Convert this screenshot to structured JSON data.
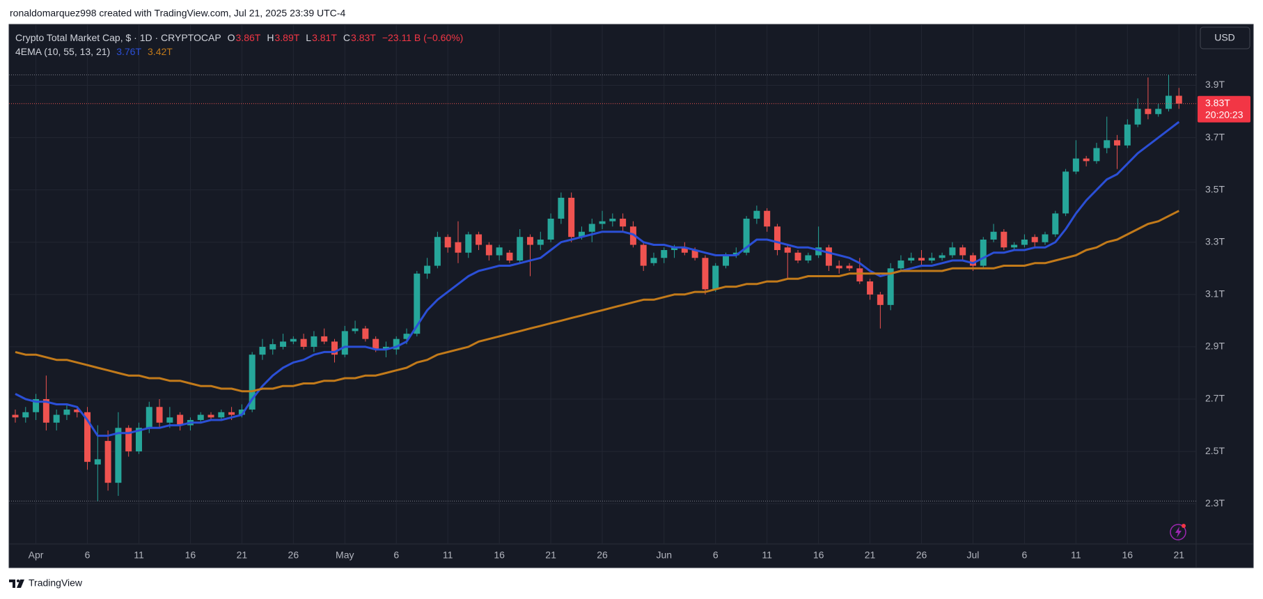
{
  "chart_data": {
    "type": "candlestick",
    "credit": "ronaldomarquez998 created with TradingView.com, Jul 21, 2025 23:39 UTC-4",
    "title": "Crypto Total Market Cap, $ · 1D · CRYPTOCAP",
    "legend": [
      {
        "key": "O",
        "value": "3.86T"
      },
      {
        "key": "H",
        "value": "3.89T"
      },
      {
        "key": "L",
        "value": "3.81T"
      },
      {
        "key": "C",
        "value": "3.83T"
      }
    ],
    "change": "−23.11 B (−0.60%)",
    "currency": "USD",
    "price_label": "3.83T",
    "countdown": "20:20:23",
    "brand": "TradingView",
    "up_color": "#26a69a",
    "down_color": "#ef5350",
    "grid": true,
    "ylim": [
      2.146,
      4.133
    ],
    "yticks": [
      {
        "value": 2.3,
        "label": "2.3T"
      },
      {
        "value": 2.5,
        "label": "2.5T"
      },
      {
        "value": 2.7,
        "label": "2.7T"
      },
      {
        "value": 2.9,
        "label": "2.9T"
      },
      {
        "value": 3.1,
        "label": "3.1T"
      },
      {
        "value": 3.3,
        "label": "3.3T"
      },
      {
        "value": 3.5,
        "label": "3.5T"
      },
      {
        "value": 3.7,
        "label": "3.7T"
      },
      {
        "value": 3.9,
        "label": "3.9T"
      }
    ],
    "categories": [
      null,
      null,
      "Apr",
      null,
      null,
      null,
      null,
      "6",
      null,
      null,
      null,
      null,
      "11",
      null,
      null,
      null,
      null,
      "16",
      null,
      null,
      null,
      null,
      "21",
      null,
      null,
      null,
      null,
      "26",
      null,
      null,
      null,
      null,
      "May",
      null,
      null,
      null,
      null,
      "6",
      null,
      null,
      null,
      null,
      "11",
      null,
      null,
      null,
      null,
      "16",
      null,
      null,
      null,
      null,
      "21",
      null,
      null,
      null,
      null,
      "26",
      null,
      null,
      null,
      null,
      null,
      "Jun",
      null,
      null,
      null,
      null,
      "6",
      null,
      null,
      null,
      null,
      "11",
      null,
      null,
      null,
      null,
      "16",
      null,
      null,
      null,
      null,
      "21",
      null,
      null,
      null,
      null,
      "26",
      null,
      null,
      null,
      null,
      "Jul",
      null,
      null,
      null,
      null,
      "6",
      null,
      null,
      null,
      null,
      "11",
      null,
      null,
      null,
      null,
      "16",
      null,
      null,
      null,
      null,
      "21"
    ],
    "open": [
      2.64,
      2.63,
      2.65,
      2.7,
      2.61,
      2.64,
      2.66,
      2.65,
      2.45,
      2.54,
      2.38,
      2.59,
      2.5,
      2.59,
      2.67,
      2.61,
      2.64,
      2.6,
      2.62,
      2.64,
      2.63,
      2.65,
      2.64,
      2.66,
      2.87,
      2.89,
      2.9,
      2.92,
      2.93,
      2.9,
      2.94,
      2.92,
      2.87,
      2.96,
      2.97,
      2.93,
      2.89,
      2.89,
      2.93,
      2.95,
      3.18,
      3.21,
      3.32,
      3.3,
      3.26,
      3.33,
      3.29,
      3.25,
      3.26,
      3.23,
      3.32,
      3.29,
      3.31,
      3.39,
      3.47,
      3.32,
      3.34,
      3.37,
      3.38,
      3.39,
      3.36,
      3.29,
      3.22,
      3.24,
      3.27,
      3.28,
      3.27,
      3.24,
      3.12,
      3.21,
      3.25,
      3.26,
      3.39,
      3.42,
      3.36,
      3.28,
      3.26,
      3.23,
      3.25,
      3.28,
      3.21,
      3.21,
      3.2,
      3.15,
      3.1,
      3.06,
      3.2,
      3.23,
      3.24,
      3.23,
      3.24,
      3.25,
      3.28,
      3.25,
      3.21,
      3.31,
      3.34,
      3.28,
      3.29,
      3.32,
      3.3,
      3.33,
      3.41,
      3.57,
      3.62,
      3.61,
      3.66,
      3.69,
      3.67,
      3.75,
      3.81,
      3.79,
      3.81,
      3.86
    ],
    "high": [
      2.66,
      2.67,
      2.72,
      2.79,
      2.66,
      2.68,
      2.67,
      2.67,
      2.6,
      2.58,
      2.65,
      2.6,
      2.61,
      2.69,
      2.7,
      2.67,
      2.65,
      2.63,
      2.65,
      2.65,
      2.66,
      2.67,
      2.68,
      2.88,
      2.93,
      2.93,
      2.95,
      2.94,
      2.95,
      2.96,
      2.97,
      2.93,
      2.98,
      3.0,
      2.98,
      2.94,
      2.92,
      2.94,
      2.97,
      3.19,
      3.24,
      3.34,
      3.33,
      3.38,
      3.34,
      3.34,
      3.3,
      3.29,
      3.27,
      3.35,
      3.33,
      3.34,
      3.41,
      3.49,
      3.49,
      3.36,
      3.39,
      3.42,
      3.41,
      3.41,
      3.38,
      3.3,
      3.26,
      3.28,
      3.29,
      3.3,
      3.28,
      3.25,
      3.22,
      3.26,
      3.28,
      3.4,
      3.44,
      3.43,
      3.37,
      3.29,
      3.27,
      3.26,
      3.36,
      3.29,
      3.23,
      3.22,
      3.24,
      3.16,
      3.11,
      3.22,
      3.25,
      3.26,
      3.27,
      3.26,
      3.26,
      3.3,
      3.29,
      3.26,
      3.32,
      3.37,
      3.35,
      3.3,
      3.33,
      3.33,
      3.34,
      3.42,
      3.58,
      3.69,
      3.63,
      3.68,
      3.78,
      3.71,
      3.77,
      3.85,
      3.93,
      3.83,
      3.94,
      3.89
    ],
    "low": [
      2.61,
      2.61,
      2.62,
      2.58,
      2.58,
      2.62,
      2.63,
      2.43,
      2.31,
      2.35,
      2.33,
      2.48,
      2.49,
      2.57,
      2.59,
      2.59,
      2.58,
      2.58,
      2.61,
      2.62,
      2.62,
      2.62,
      2.63,
      2.65,
      2.85,
      2.87,
      2.89,
      2.91,
      2.89,
      2.88,
      2.91,
      2.84,
      2.86,
      2.95,
      2.92,
      2.88,
      2.86,
      2.87,
      2.91,
      2.94,
      3.16,
      3.2,
      3.26,
      3.22,
      3.24,
      3.27,
      3.23,
      3.23,
      3.22,
      3.22,
      3.17,
      3.27,
      3.3,
      3.37,
      3.3,
      3.31,
      3.3,
      3.35,
      3.36,
      3.34,
      3.28,
      3.19,
      3.21,
      3.22,
      3.24,
      3.25,
      3.23,
      3.1,
      3.11,
      3.2,
      3.24,
      3.25,
      3.37,
      3.34,
      3.25,
      3.16,
      3.22,
      3.22,
      3.24,
      3.19,
      3.18,
      3.19,
      3.14,
      3.08,
      2.97,
      3.04,
      3.19,
      3.22,
      3.21,
      3.22,
      3.23,
      3.24,
      3.23,
      3.19,
      3.2,
      3.3,
      3.27,
      3.27,
      3.28,
      3.28,
      3.29,
      3.32,
      3.4,
      3.56,
      3.59,
      3.6,
      3.64,
      3.58,
      3.66,
      3.74,
      3.77,
      3.78,
      3.8,
      3.81
    ],
    "close": [
      2.63,
      2.65,
      2.7,
      2.61,
      2.64,
      2.66,
      2.65,
      2.46,
      2.47,
      2.38,
      2.59,
      2.5,
      2.59,
      2.67,
      2.61,
      2.63,
      2.6,
      2.62,
      2.64,
      2.63,
      2.65,
      2.64,
      2.66,
      2.87,
      2.9,
      2.91,
      2.92,
      2.93,
      2.9,
      2.94,
      2.92,
      2.87,
      2.96,
      2.97,
      2.93,
      2.89,
      2.9,
      2.93,
      2.95,
      3.18,
      3.21,
      3.32,
      3.28,
      3.26,
      3.33,
      3.29,
      3.25,
      3.28,
      3.23,
      3.32,
      3.29,
      3.31,
      3.39,
      3.47,
      3.32,
      3.34,
      3.37,
      3.38,
      3.39,
      3.36,
      3.29,
      3.21,
      3.24,
      3.27,
      3.28,
      3.26,
      3.24,
      3.12,
      3.21,
      3.25,
      3.26,
      3.39,
      3.42,
      3.36,
      3.27,
      3.26,
      3.23,
      3.25,
      3.28,
      3.21,
      3.2,
      3.2,
      3.15,
      3.1,
      3.06,
      3.2,
      3.23,
      3.24,
      3.23,
      3.24,
      3.25,
      3.28,
      3.25,
      3.21,
      3.31,
      3.34,
      3.28,
      3.29,
      3.31,
      3.3,
      3.33,
      3.41,
      3.57,
      3.62,
      3.61,
      3.66,
      3.69,
      3.67,
      3.75,
      3.81,
      3.79,
      3.81,
      3.86,
      3.83
    ],
    "indicator": {
      "label": "4EMA (10, 55, 13, 21)",
      "lines": [
        {
          "color": "#2b4fd6",
          "value_label": "3.76T",
          "values": [
            2.72,
            2.7,
            2.69,
            2.69,
            2.68,
            2.68,
            2.67,
            2.62,
            2.56,
            2.56,
            2.57,
            2.57,
            2.58,
            2.59,
            2.59,
            2.6,
            2.6,
            2.61,
            2.61,
            2.62,
            2.62,
            2.63,
            2.64,
            2.7,
            2.75,
            2.79,
            2.82,
            2.84,
            2.85,
            2.87,
            2.88,
            2.88,
            2.9,
            2.9,
            2.9,
            2.89,
            2.89,
            2.9,
            2.92,
            2.98,
            3.04,
            3.08,
            3.11,
            3.14,
            3.17,
            3.19,
            3.2,
            3.21,
            3.21,
            3.22,
            3.23,
            3.24,
            3.27,
            3.3,
            3.31,
            3.32,
            3.33,
            3.34,
            3.34,
            3.34,
            3.33,
            3.3,
            3.29,
            3.29,
            3.28,
            3.28,
            3.27,
            3.26,
            3.25,
            3.25,
            3.25,
            3.28,
            3.31,
            3.31,
            3.3,
            3.29,
            3.28,
            3.28,
            3.27,
            3.26,
            3.25,
            3.24,
            3.22,
            3.19,
            3.17,
            3.18,
            3.19,
            3.2,
            3.21,
            3.21,
            3.22,
            3.23,
            3.23,
            3.22,
            3.24,
            3.26,
            3.26,
            3.27,
            3.27,
            3.28,
            3.28,
            3.3,
            3.35,
            3.41,
            3.46,
            3.5,
            3.54,
            3.56,
            3.6,
            3.64,
            3.67,
            3.7,
            3.73,
            3.76
          ]
        },
        {
          "color": "#c27a1a",
          "value_label": "3.42T",
          "values": [
            2.88,
            2.87,
            2.87,
            2.86,
            2.85,
            2.85,
            2.84,
            2.83,
            2.82,
            2.81,
            2.8,
            2.79,
            2.79,
            2.78,
            2.78,
            2.77,
            2.77,
            2.76,
            2.75,
            2.75,
            2.74,
            2.74,
            2.73,
            2.73,
            2.74,
            2.74,
            2.75,
            2.75,
            2.76,
            2.76,
            2.77,
            2.77,
            2.78,
            2.78,
            2.79,
            2.79,
            2.8,
            2.81,
            2.82,
            2.84,
            2.85,
            2.87,
            2.88,
            2.89,
            2.9,
            2.92,
            2.93,
            2.94,
            2.95,
            2.96,
            2.97,
            2.98,
            2.99,
            3.0,
            3.01,
            3.02,
            3.03,
            3.04,
            3.05,
            3.06,
            3.07,
            3.08,
            3.08,
            3.09,
            3.1,
            3.1,
            3.11,
            3.11,
            3.12,
            3.13,
            3.13,
            3.14,
            3.14,
            3.15,
            3.15,
            3.16,
            3.16,
            3.17,
            3.17,
            3.17,
            3.17,
            3.18,
            3.18,
            3.18,
            3.18,
            3.18,
            3.19,
            3.19,
            3.19,
            3.19,
            3.19,
            3.2,
            3.2,
            3.2,
            3.2,
            3.2,
            3.21,
            3.21,
            3.21,
            3.22,
            3.22,
            3.23,
            3.24,
            3.25,
            3.27,
            3.28,
            3.3,
            3.31,
            3.33,
            3.35,
            3.37,
            3.38,
            3.4,
            3.42
          ]
        }
      ]
    }
  }
}
